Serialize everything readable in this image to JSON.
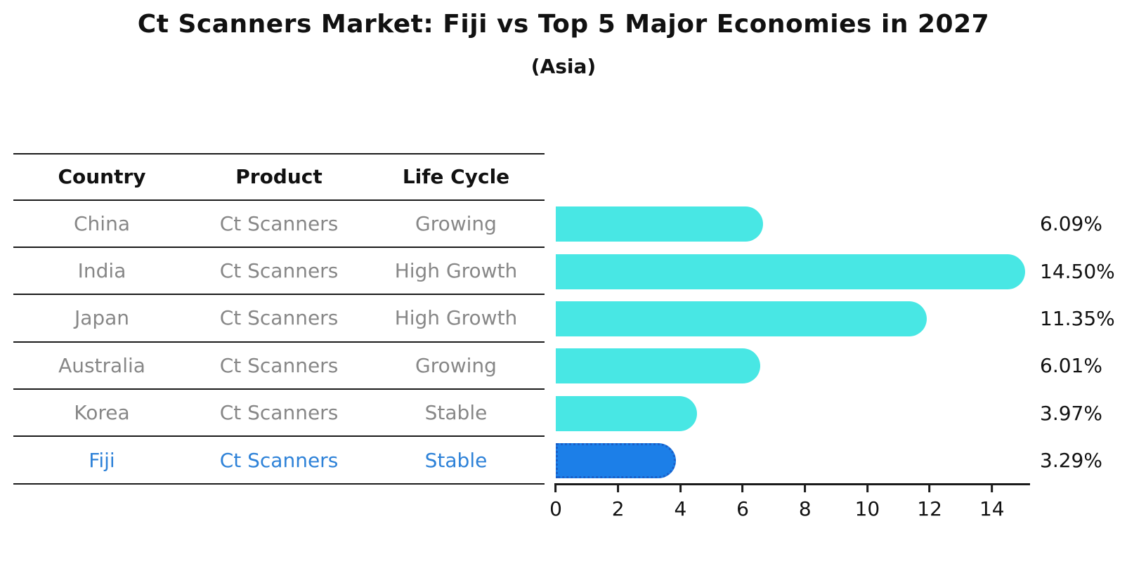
{
  "title": "Ct Scanners Market: Fiji vs Top 5 Major Economies in 2027",
  "subtitle": "(Asia)",
  "table": {
    "headers": [
      "Country",
      "Product",
      "Life Cycle"
    ],
    "rows": [
      {
        "country": "China",
        "product": "Ct Scanners",
        "life_cycle": "Growing",
        "highlight": false
      },
      {
        "country": "India",
        "product": "Ct Scanners",
        "life_cycle": "High Growth",
        "highlight": false
      },
      {
        "country": "Japan",
        "product": "Ct Scanners",
        "life_cycle": "High Growth",
        "highlight": false
      },
      {
        "country": "Australia",
        "product": "Ct Scanners",
        "life_cycle": "Growing",
        "highlight": false
      },
      {
        "country": "Korea",
        "product": "Ct Scanners",
        "life_cycle": "Stable",
        "highlight": false
      },
      {
        "country": "Fiji",
        "product": "Ct Scanners",
        "life_cycle": "Stable",
        "highlight": true
      }
    ]
  },
  "chart_data": {
    "type": "bar",
    "orientation": "horizontal",
    "title": "Ct Scanners Market: Fiji vs Top 5 Major Economies in 2027",
    "subtitle": "(Asia)",
    "categories": [
      "China",
      "India",
      "Japan",
      "Australia",
      "Korea",
      "Fiji"
    ],
    "values": [
      6.09,
      14.5,
      11.35,
      6.01,
      3.97,
      3.29
    ],
    "value_labels": [
      "6.09%",
      "14.50%",
      "11.35%",
      "6.01%",
      "3.97%",
      "3.29%"
    ],
    "highlight_index": 5,
    "x_ticks": [
      0,
      2,
      4,
      6,
      8,
      10,
      12,
      14
    ],
    "xlim": [
      0,
      15.2
    ],
    "grid": false,
    "legend": "none",
    "xlabel": "",
    "ylabel": ""
  },
  "colors": {
    "bar": "#48E7E4",
    "highlight_bar": "#1C7FE8",
    "highlight_border": "#1A5FC8",
    "highlight_text": "#2E82D8",
    "row_text": "#878787",
    "ink": "#1a1a1a"
  }
}
